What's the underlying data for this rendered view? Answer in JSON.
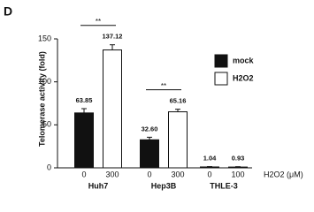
{
  "chart_data": {
    "type": "bar",
    "panel": "D",
    "y_label": "Telomerase activity (fold)",
    "x_label": "H2O2 (μM)",
    "categories": [
      "Huh7",
      "Hep3B",
      "THLE-3"
    ],
    "series": [
      {
        "name": "mock",
        "color": "#111111",
        "values": [
          63.85,
          32.6,
          1.04
        ],
        "value_labels": [
          "63.85",
          "32.60",
          "1.04"
        ],
        "errors": [
          5,
          3,
          0.4
        ],
        "doses": [
          0,
          0,
          0
        ]
      },
      {
        "name": "H2O2",
        "color": "#ffffff",
        "values": [
          137.12,
          65.16,
          0.93
        ],
        "value_labels": [
          "137.12",
          "65.16",
          "0.93"
        ],
        "errors": [
          6,
          3,
          0.4
        ],
        "doses": [
          300,
          300,
          100
        ]
      }
    ],
    "significance": [
      "**",
      "**",
      null
    ],
    "ylim": [
      0,
      150
    ],
    "yticks": [
      0,
      50,
      100,
      150
    ]
  }
}
